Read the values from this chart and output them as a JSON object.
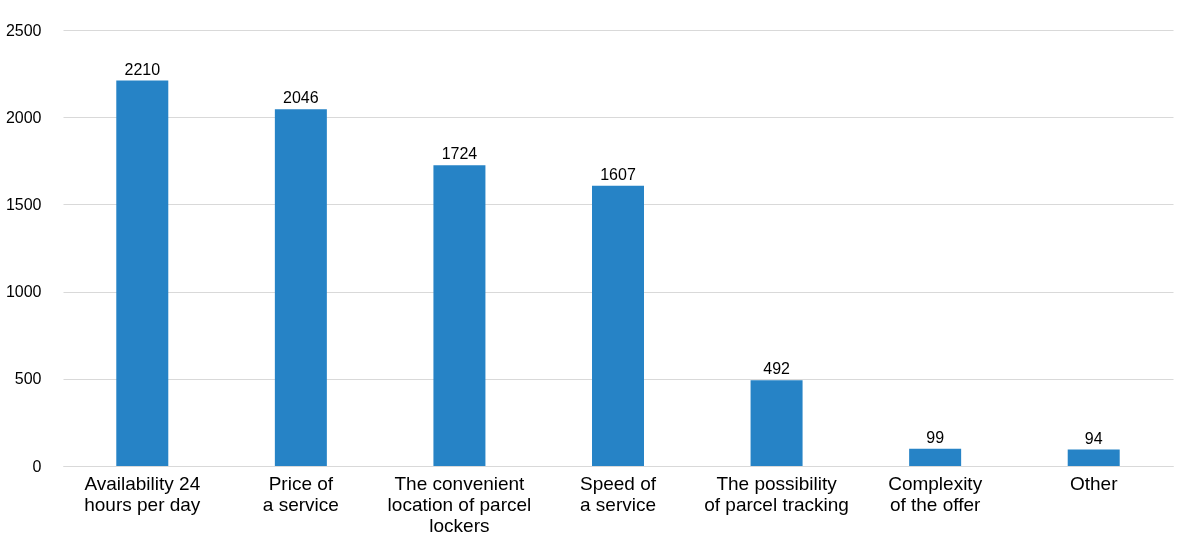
{
  "chart_data": {
    "type": "bar",
    "categories": [
      "Availability 24\nhours per day",
      "Price of\na service",
      "The convenient\nlocation of parcel\nlockers",
      "Speed of\na service",
      "The possibility\nof parcel tracking",
      "Complexity\nof the offer",
      "Other"
    ],
    "values": [
      2210,
      2046,
      1724,
      1607,
      492,
      99,
      94
    ],
    "color": "#2683c6",
    "ylim": [
      0,
      2500
    ],
    "yticks": [
      0,
      500,
      1000,
      1500,
      2000,
      2500
    ],
    "grid": "y",
    "data_labels": true
  }
}
